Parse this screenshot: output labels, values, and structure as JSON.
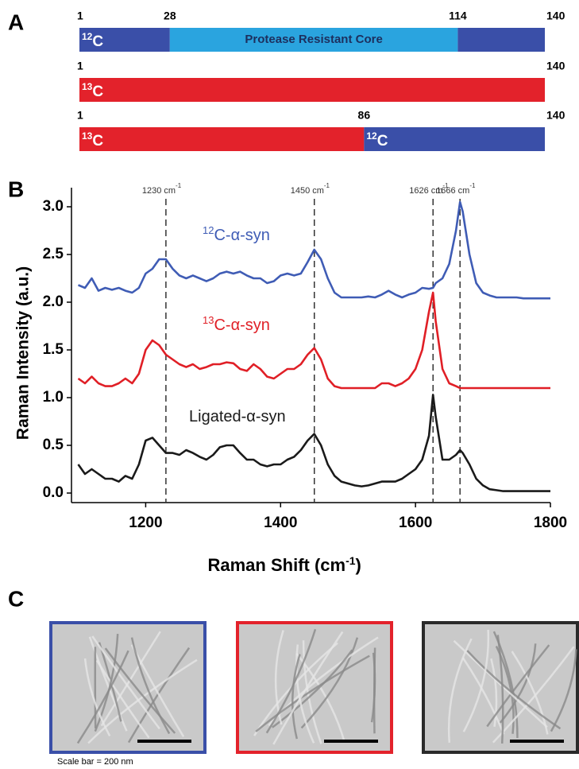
{
  "panel_a": {
    "letter": "A",
    "bars": [
      {
        "ticks": [
          1,
          28,
          114,
          140
        ],
        "segments": [
          {
            "color": "#3a4fa8",
            "sup": "12",
            "label": "C"
          },
          {
            "color": "#2aa4df",
            "label": "Protease Resistant Core"
          },
          {
            "color": "#3a4fa8"
          }
        ]
      },
      {
        "ticks": [
          1,
          140
        ],
        "segments": [
          {
            "color": "#e3222b",
            "sup": "13",
            "label": "C"
          }
        ]
      },
      {
        "ticks": [
          1,
          86,
          140
        ],
        "segments": [
          {
            "color": "#e3222b",
            "sup": "13",
            "label": "C"
          },
          {
            "color": "#3a4fa8",
            "sup": "12",
            "label": "C"
          }
        ]
      }
    ]
  },
  "chart_data": {
    "type": "line",
    "letter": "B",
    "ylabel": "Raman Intensity (a.u.)",
    "xlabel": "Raman Shift (cm",
    "xlabel_sup": "-1",
    "xlabel_end": ")",
    "x": [
      1100,
      1110,
      1120,
      1130,
      1140,
      1150,
      1160,
      1170,
      1180,
      1190,
      1200,
      1210,
      1220,
      1230,
      1240,
      1250,
      1260,
      1270,
      1280,
      1290,
      1300,
      1310,
      1320,
      1330,
      1340,
      1350,
      1360,
      1370,
      1380,
      1390,
      1400,
      1410,
      1420,
      1430,
      1440,
      1450,
      1460,
      1470,
      1480,
      1490,
      1500,
      1510,
      1520,
      1530,
      1540,
      1550,
      1560,
      1570,
      1580,
      1590,
      1600,
      1610,
      1620,
      1626,
      1630,
      1640,
      1650,
      1660,
      1666,
      1670,
      1680,
      1690,
      1700,
      1710,
      1720,
      1730,
      1740,
      1750,
      1760,
      1770,
      1780,
      1790,
      1800
    ],
    "series": [
      {
        "name": "C-α-syn",
        "name_sup": "12",
        "color": "#3f5cb5",
        "values": [
          2.18,
          2.15,
          2.25,
          2.12,
          2.15,
          2.13,
          2.15,
          2.12,
          2.1,
          2.15,
          2.3,
          2.35,
          2.45,
          2.45,
          2.35,
          2.28,
          2.25,
          2.28,
          2.25,
          2.22,
          2.25,
          2.3,
          2.32,
          2.3,
          2.32,
          2.28,
          2.25,
          2.25,
          2.2,
          2.22,
          2.28,
          2.3,
          2.28,
          2.3,
          2.42,
          2.55,
          2.45,
          2.25,
          2.1,
          2.05,
          2.05,
          2.05,
          2.05,
          2.06,
          2.05,
          2.08,
          2.12,
          2.08,
          2.05,
          2.08,
          2.1,
          2.15,
          2.14,
          2.15,
          2.2,
          2.25,
          2.4,
          2.75,
          3.05,
          2.95,
          2.5,
          2.2,
          2.1,
          2.07,
          2.05,
          2.05,
          2.05,
          2.05,
          2.04,
          2.04,
          2.04,
          2.04,
          2.04
        ]
      },
      {
        "name": "C-α-syn",
        "name_sup": "13",
        "color": "#e01f26",
        "values": [
          1.2,
          1.15,
          1.22,
          1.15,
          1.12,
          1.12,
          1.15,
          1.2,
          1.15,
          1.25,
          1.5,
          1.6,
          1.55,
          1.45,
          1.4,
          1.35,
          1.32,
          1.35,
          1.3,
          1.32,
          1.35,
          1.35,
          1.37,
          1.36,
          1.3,
          1.28,
          1.35,
          1.3,
          1.22,
          1.2,
          1.25,
          1.3,
          1.3,
          1.35,
          1.45,
          1.52,
          1.4,
          1.2,
          1.12,
          1.1,
          1.1,
          1.1,
          1.1,
          1.1,
          1.1,
          1.15,
          1.15,
          1.12,
          1.15,
          1.2,
          1.3,
          1.5,
          1.9,
          2.1,
          1.8,
          1.3,
          1.15,
          1.12,
          1.1,
          1.1,
          1.1,
          1.1,
          1.1,
          1.1,
          1.1,
          1.1,
          1.1,
          1.1,
          1.1,
          1.1,
          1.1,
          1.1,
          1.1
        ]
      },
      {
        "name": "Ligated-α-syn",
        "color": "#1a1a1a",
        "values": [
          0.3,
          0.2,
          0.25,
          0.2,
          0.15,
          0.15,
          0.12,
          0.18,
          0.15,
          0.3,
          0.55,
          0.58,
          0.5,
          0.42,
          0.42,
          0.4,
          0.45,
          0.42,
          0.38,
          0.35,
          0.4,
          0.48,
          0.5,
          0.5,
          0.42,
          0.35,
          0.35,
          0.3,
          0.28,
          0.3,
          0.3,
          0.35,
          0.38,
          0.45,
          0.55,
          0.62,
          0.5,
          0.3,
          0.18,
          0.12,
          0.1,
          0.08,
          0.07,
          0.08,
          0.1,
          0.12,
          0.12,
          0.12,
          0.15,
          0.2,
          0.25,
          0.35,
          0.6,
          1.03,
          0.8,
          0.35,
          0.35,
          0.4,
          0.45,
          0.42,
          0.3,
          0.15,
          0.08,
          0.04,
          0.03,
          0.02,
          0.02,
          0.02,
          0.02,
          0.02,
          0.02,
          0.02,
          0.02
        ]
      }
    ],
    "xlim": [
      1090,
      1800
    ],
    "xticks": [
      1200,
      1400,
      1600,
      1800
    ],
    "ylim": [
      -0.1,
      3.2
    ],
    "yticks": [
      {
        "value": 0,
        "label": "0.0"
      },
      0.5,
      {
        "value": 1,
        "label": "1.0"
      },
      1.5,
      {
        "value": 2,
        "label": "2.0"
      },
      2.5,
      {
        "value": 3,
        "label": "3.0"
      }
    ],
    "annotations": [
      {
        "x": 1230,
        "unit": "cm",
        "unit_sup": "-1"
      },
      {
        "x": 1450,
        "unit": "cm",
        "unit_sup": "-1"
      },
      {
        "x": 1626,
        "unit": "cm",
        "unit_sup": "-1"
      },
      {
        "x": 1666,
        "unit": "cm",
        "unit_sup": "-1"
      }
    ]
  },
  "panel_c": {
    "letter": "C",
    "caption": "Scale bar = 200 nm",
    "frames": [
      {
        "color": "#3a4fa8"
      },
      {
        "color": "#e3222b"
      },
      {
        "color": "#2a2a2a"
      }
    ]
  }
}
